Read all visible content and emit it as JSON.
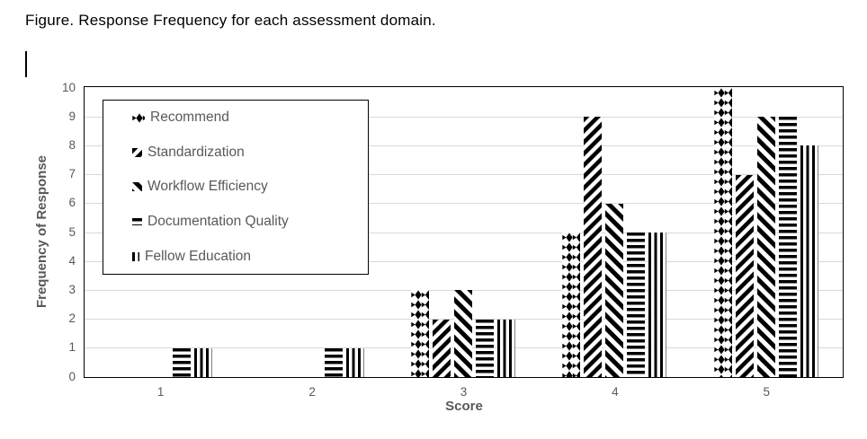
{
  "figure": {
    "title": "Figure. Response Frequency for each assessment domain."
  },
  "chart_data": {
    "type": "bar",
    "title": "Response Frequency for each assessment domain",
    "xlabel": "Score",
    "ylabel": "Frequency of Response",
    "categories": [
      "1",
      "2",
      "3",
      "4",
      "5"
    ],
    "series": [
      {
        "name": "Recommend",
        "pattern": "diamond",
        "values": [
          0,
          0,
          3,
          5,
          10
        ]
      },
      {
        "name": "Standardization",
        "pattern": "diagonal-up",
        "values": [
          0,
          0,
          2,
          9,
          7
        ]
      },
      {
        "name": "Workflow Efficiency",
        "pattern": "diagonal-down",
        "values": [
          0,
          0,
          3,
          6,
          9
        ]
      },
      {
        "name": "Documentation Quality",
        "pattern": "horizontal",
        "values": [
          1,
          1,
          2,
          5,
          9
        ]
      },
      {
        "name": "Fellow Education",
        "pattern": "vertical",
        "values": [
          1,
          1,
          2,
          5,
          8
        ]
      }
    ],
    "ylim": [
      0,
      10
    ],
    "ytick_step": 1,
    "grid": true,
    "legend_position": "top-left",
    "colors": {
      "bar_ink": "#000000",
      "axis_text": "#595959",
      "gridline": "#d9d9d9",
      "plot_border": "#000000",
      "background": "#ffffff"
    }
  }
}
